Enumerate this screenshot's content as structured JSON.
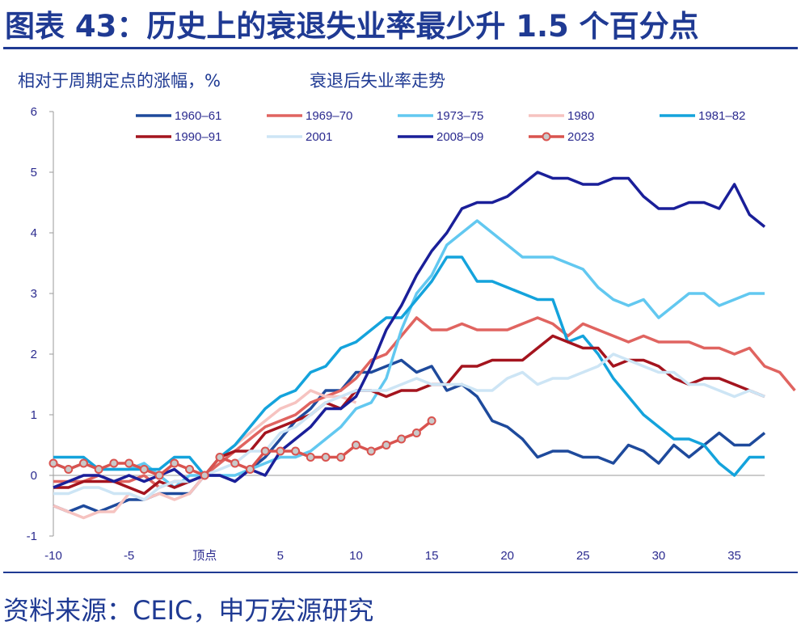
{
  "header": {
    "title": "图表 43：历史上的衰退失业率最少升 1.5 个百分点",
    "ylabel": "相对于周期定点的涨幅，%",
    "subtitle": "衰退后失业率走势"
  },
  "footer": {
    "source": "资料来源：CEIC，申万宏源研究"
  },
  "chart_data": {
    "type": "line",
    "title": "衰退后失业率走势",
    "ylabel": "相对于周期定点的涨幅，%",
    "xlabel": "",
    "xlim": [
      -10,
      37
    ],
    "ylim": [
      -1,
      6
    ],
    "yticks": [
      "-1",
      "0",
      "1",
      "2",
      "3",
      "4",
      "5",
      "6"
    ],
    "xticks": [
      {
        "x": -10,
        "label": "-10"
      },
      {
        "x": -5,
        "label": "-5"
      },
      {
        "x": 0,
        "label": "顶点"
      },
      {
        "x": 5,
        "label": "5"
      },
      {
        "x": 10,
        "label": "10"
      },
      {
        "x": 15,
        "label": "15"
      },
      {
        "x": 20,
        "label": "20"
      },
      {
        "x": 25,
        "label": "25"
      },
      {
        "x": 30,
        "label": "30"
      },
      {
        "x": 35,
        "label": "35"
      }
    ],
    "legend_position": "top",
    "series": [
      {
        "name": "1960–61",
        "color": "#1e4a9c",
        "x_start": -10,
        "values": [
          -0.5,
          -0.6,
          -0.5,
          -0.6,
          -0.5,
          -0.4,
          -0.4,
          -0.3,
          -0.3,
          -0.3,
          0,
          0,
          -0.1,
          0.1,
          0.3,
          0.6,
          0.9,
          1.1,
          1.4,
          1.4,
          1.7,
          1.7,
          1.8,
          1.9,
          1.7,
          1.8,
          1.4,
          1.5,
          1.3,
          0.9,
          0.8,
          0.6,
          0.3,
          0.4,
          0.4,
          0.3,
          0.3,
          0.2,
          0.5,
          0.4,
          0.2,
          0.5,
          0.3,
          0.5,
          0.7,
          0.5,
          0.5,
          0.7
        ]
      },
      {
        "name": "1969–70",
        "color": "#e06460",
        "x_start": -10,
        "values": [
          -0.1,
          -0.1,
          -0.1,
          0,
          -0.1,
          -0.1,
          0,
          -0.2,
          -0.1,
          -0.1,
          0,
          0.2,
          0.4,
          0.6,
          0.8,
          0.9,
          1.0,
          1.2,
          1.3,
          1.4,
          1.6,
          1.9,
          2.0,
          2.3,
          2.6,
          2.4,
          2.4,
          2.5,
          2.4,
          2.4,
          2.4,
          2.5,
          2.6,
          2.5,
          2.3,
          2.5,
          2.4,
          2.3,
          2.2,
          2.3,
          2.2,
          2.2,
          2.2,
          2.1,
          2.1,
          2.0,
          2.1,
          1.8,
          1.7,
          1.4
        ]
      },
      {
        "name": "1973–75",
        "color": "#62c8f0",
        "x_start": -10,
        "values": [
          0.2,
          0.1,
          0.2,
          0.1,
          0.1,
          0.1,
          0.2,
          0,
          -0.2,
          0,
          0,
          0,
          0,
          0.1,
          0.2,
          0.3,
          0.3,
          0.4,
          0.6,
          0.8,
          1.1,
          1.2,
          1.6,
          2.4,
          3.0,
          3.3,
          3.8,
          4.0,
          4.2,
          4.0,
          3.8,
          3.6,
          3.6,
          3.6,
          3.5,
          3.4,
          3.1,
          2.9,
          2.8,
          2.9,
          2.6,
          2.8,
          3.0,
          3.0,
          2.8,
          2.9,
          3.0,
          3.0
        ]
      },
      {
        "name": "1980",
        "color": "#f6c3c0",
        "x_start": -10,
        "values": [
          -0.5,
          -0.6,
          -0.7,
          -0.6,
          -0.6,
          -0.3,
          -0.4,
          -0.3,
          -0.4,
          -0.3,
          0,
          0.3,
          0.5,
          0.7,
          0.9,
          1.1,
          1.2,
          1.4,
          1.3,
          1.3,
          1.2
        ]
      },
      {
        "name": "1981–82",
        "color": "#14a3dc",
        "x_start": -10,
        "values": [
          0.3,
          0.3,
          0.3,
          0.1,
          0.1,
          0.1,
          0.1,
          0.1,
          0.3,
          0.3,
          0,
          0.3,
          0.5,
          0.8,
          1.1,
          1.3,
          1.4,
          1.7,
          1.8,
          2.1,
          2.2,
          2.4,
          2.6,
          2.6,
          2.9,
          3.2,
          3.6,
          3.6,
          3.2,
          3.2,
          3.1,
          3.0,
          2.9,
          2.9,
          2.2,
          2.3,
          2.0,
          1.6,
          1.3,
          1.0,
          0.8,
          0.6,
          0.6,
          0.5,
          0.2,
          0.0,
          0.3,
          0.3
        ]
      },
      {
        "name": "1990–91",
        "color": "#a4141e",
        "x_start": -10,
        "values": [
          -0.2,
          -0.2,
          -0.1,
          -0.1,
          -0.1,
          -0.2,
          -0.3,
          -0.1,
          -0.2,
          -0.1,
          0,
          0.3,
          0.4,
          0.4,
          0.7,
          0.8,
          0.9,
          1.0,
          1.2,
          1.1,
          1.4,
          1.4,
          1.3,
          1.4,
          1.4,
          1.5,
          1.5,
          1.8,
          1.8,
          1.9,
          1.9,
          1.9,
          2.1,
          2.3,
          2.2,
          2.1,
          2.1,
          1.8,
          1.9,
          1.9,
          1.8,
          1.6,
          1.5,
          1.6,
          1.6,
          1.5,
          1.4,
          1.3
        ]
      },
      {
        "name": "2001",
        "color": "#cde5f5",
        "x_start": -10,
        "values": [
          -0.3,
          -0.3,
          -0.2,
          -0.2,
          -0.3,
          -0.3,
          -0.4,
          -0.2,
          -0.1,
          -0.1,
          0,
          0.1,
          0.2,
          0.4,
          0.4,
          0.7,
          0.8,
          1.0,
          1.2,
          1.3,
          1.4,
          1.4,
          1.4,
          1.5,
          1.6,
          1.5,
          1.5,
          1.5,
          1.4,
          1.4,
          1.6,
          1.7,
          1.5,
          1.6,
          1.6,
          1.7,
          1.8,
          2.0,
          1.9,
          1.8,
          1.7,
          1.7,
          1.5,
          1.5,
          1.4,
          1.3,
          1.4,
          1.3
        ]
      },
      {
        "name": "2008–09",
        "color": "#1a1f99",
        "x_start": -10,
        "values": [
          -0.2,
          -0.1,
          0,
          0,
          -0.1,
          0,
          -0.1,
          0,
          0.1,
          -0.1,
          0,
          0,
          -0.1,
          0.1,
          0,
          0.4,
          0.6,
          0.8,
          1.1,
          1.1,
          1.3,
          1.8,
          2.4,
          2.8,
          3.3,
          3.7,
          4.0,
          4.4,
          4.5,
          4.5,
          4.6,
          4.8,
          5.0,
          4.9,
          4.9,
          4.8,
          4.8,
          4.9,
          4.9,
          4.6,
          4.4,
          4.4,
          4.5,
          4.5,
          4.4,
          4.8,
          4.3,
          4.1
        ]
      },
      {
        "name": "2023",
        "color": "#d9534f",
        "marker": "circle",
        "x_start": -10,
        "values": [
          0.2,
          0.1,
          0.2,
          0.1,
          0.2,
          0.2,
          0.1,
          0,
          0.2,
          0.1,
          0,
          0.3,
          0.2,
          0.1,
          0.4,
          0.4,
          0.4,
          0.3,
          0.3,
          0.3,
          0.5,
          0.4,
          0.5,
          0.6,
          0.7,
          0.9
        ]
      }
    ]
  }
}
